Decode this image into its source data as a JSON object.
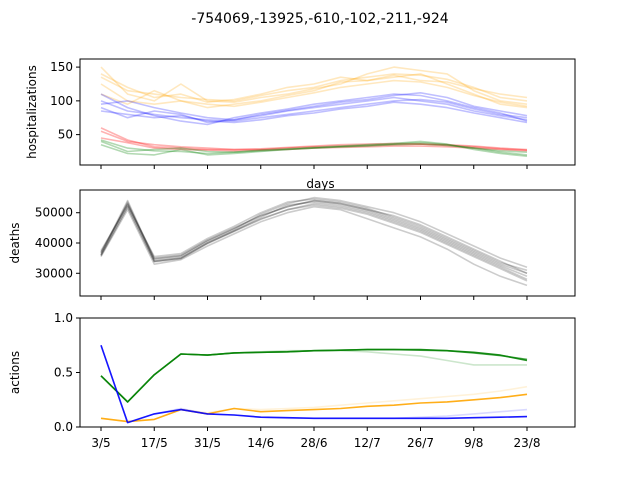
{
  "figure": {
    "suptitle": "-754069,-13925,-610,-102,-211,-924"
  },
  "x_ticklabels": [
    "3/5",
    "17/5",
    "31/5",
    "14/6",
    "28/6",
    "12/7",
    "26/7",
    "9/8",
    "23/8"
  ],
  "chart_data": [
    {
      "type": "line",
      "panel": "hospitalizations",
      "xlabel": "days",
      "ylabel": "hospitalizations",
      "ylim": [
        5,
        162
      ],
      "yticks": [
        50,
        100,
        150
      ],
      "x_unit": "weekly steps starting 3/5",
      "grid": false,
      "series": [
        {
          "color": "#ffa500",
          "alpha": 0.25,
          "values": [
            135,
            115,
            110,
            105,
            102,
            100,
            108,
            115,
            120,
            130,
            135,
            140,
            138,
            132,
            120,
            105,
            100
          ]
        },
        {
          "color": "#ffa500",
          "alpha": 0.25,
          "values": [
            150,
            110,
            100,
            125,
            100,
            98,
            105,
            110,
            118,
            125,
            140,
            150,
            145,
            140,
            115,
            100,
            95
          ]
        },
        {
          "color": "#ffa500",
          "alpha": 0.25,
          "values": [
            125,
            100,
            95,
            100,
            90,
            95,
            100,
            108,
            115,
            128,
            130,
            135,
            140,
            125,
            110,
            95,
            90
          ]
        },
        {
          "color": "#ffa500",
          "alpha": 0.25,
          "values": [
            140,
            120,
            105,
            110,
            98,
            102,
            110,
            120,
            125,
            135,
            130,
            138,
            130,
            128,
            118,
            110,
            105
          ]
        },
        {
          "color": "#ffa500",
          "alpha": 0.25,
          "values": [
            110,
            95,
            115,
            100,
            95,
            92,
            98,
            105,
            112,
            120,
            125,
            130,
            128,
            120,
            108,
            98,
            92
          ]
        },
        {
          "color": "#0000ff",
          "alpha": 0.25,
          "values": [
            100,
            85,
            80,
            75,
            72,
            70,
            75,
            80,
            85,
            90,
            95,
            100,
            102,
            98,
            88,
            80,
            75
          ]
        },
        {
          "color": "#0000ff",
          "alpha": 0.25,
          "values": [
            90,
            75,
            85,
            80,
            68,
            72,
            78,
            85,
            90,
            95,
            100,
            105,
            100,
            95,
            85,
            78,
            72
          ]
        },
        {
          "color": "#0000ff",
          "alpha": 0.25,
          "values": [
            110,
            90,
            78,
            70,
            65,
            75,
            82,
            88,
            95,
            100,
            105,
            110,
            108,
            100,
            90,
            82,
            70
          ]
        },
        {
          "color": "#0000ff",
          "alpha": 0.25,
          "values": [
            85,
            80,
            75,
            78,
            70,
            68,
            72,
            78,
            82,
            88,
            92,
            98,
            95,
            90,
            82,
            75,
            68
          ]
        },
        {
          "color": "#0000ff",
          "alpha": 0.25,
          "values": [
            95,
            100,
            90,
            82,
            75,
            72,
            80,
            86,
            92,
            98,
            102,
            108,
            112,
            105,
            92,
            85,
            78
          ]
        },
        {
          "color": "#ff0000",
          "alpha": 0.3,
          "values": [
            55,
            40,
            35,
            32,
            30,
            28,
            28,
            30,
            32,
            33,
            34,
            35,
            36,
            35,
            33,
            30,
            28
          ]
        },
        {
          "color": "#ff0000",
          "alpha": 0.3,
          "values": [
            45,
            38,
            30,
            28,
            27,
            26,
            27,
            28,
            30,
            31,
            32,
            33,
            33,
            32,
            30,
            28,
            26
          ]
        },
        {
          "color": "#ff0000",
          "alpha": 0.3,
          "values": [
            60,
            42,
            32,
            30,
            28,
            28,
            29,
            31,
            33,
            35,
            36,
            37,
            36,
            34,
            32,
            29,
            27
          ]
        },
        {
          "color": "#008000",
          "alpha": 0.3,
          "values": [
            40,
            25,
            28,
            30,
            25,
            24,
            26,
            28,
            30,
            32,
            33,
            35,
            36,
            34,
            30,
            26,
            24
          ]
        },
        {
          "color": "#008000",
          "alpha": 0.3,
          "values": [
            35,
            22,
            20,
            28,
            20,
            22,
            25,
            28,
            30,
            32,
            34,
            36,
            38,
            35,
            30,
            24,
            20
          ]
        },
        {
          "color": "#008000",
          "alpha": 0.3,
          "values": [
            42,
            30,
            26,
            25,
            22,
            24,
            27,
            29,
            31,
            33,
            35,
            37,
            40,
            36,
            28,
            22,
            18
          ]
        }
      ]
    },
    {
      "type": "line",
      "panel": "deaths",
      "ylabel": "deaths",
      "ylim": [
        22500,
        57500
      ],
      "yticks": [
        30000,
        40000,
        50000
      ],
      "grid": false,
      "series": [
        {
          "color": "#000000",
          "alpha": 0.2,
          "values": [
            36000,
            52000,
            34000,
            35000,
            40000,
            44000,
            48000,
            51000,
            53000,
            52000,
            50000,
            47000,
            44000,
            40000,
            36000,
            32000,
            28000
          ]
        },
        {
          "color": "#000000",
          "alpha": 0.2,
          "values": [
            37000,
            53000,
            35000,
            36000,
            41000,
            45000,
            49000,
            52000,
            54000,
            53000,
            51000,
            49000,
            46000,
            42000,
            38000,
            34000,
            30000
          ]
        },
        {
          "color": "#000000",
          "alpha": 0.2,
          "values": [
            35500,
            51000,
            33000,
            34500,
            39000,
            43000,
            47000,
            50000,
            52000,
            51000,
            48000,
            45000,
            42000,
            38000,
            33000,
            29000,
            26000
          ]
        },
        {
          "color": "#000000",
          "alpha": 0.2,
          "values": [
            36500,
            54000,
            34500,
            35500,
            40500,
            44500,
            49500,
            53000,
            55000,
            54000,
            52000,
            50000,
            47000,
            43000,
            39000,
            35000,
            32000
          ]
        },
        {
          "color": "#000000",
          "alpha": 0.2,
          "values": [
            37500,
            52500,
            35500,
            36500,
            41500,
            45500,
            50000,
            53500,
            54500,
            53500,
            51500,
            48500,
            45500,
            41500,
            37500,
            33500,
            31000
          ]
        },
        {
          "color": "#000000",
          "alpha": 0.2,
          "values": [
            36000,
            53500,
            34000,
            35000,
            40000,
            44000,
            48500,
            52500,
            53500,
            52500,
            50500,
            47500,
            44500,
            40500,
            36500,
            32500,
            29000
          ]
        },
        {
          "color": "#000000",
          "alpha": 0.2,
          "values": [
            36800,
            52800,
            34800,
            35800,
            40800,
            44800,
            49000,
            52000,
            54000,
            53000,
            51000,
            48000,
            45000,
            41000,
            37000,
            33000,
            30000
          ]
        },
        {
          "color": "#000000",
          "alpha": 0.2,
          "values": [
            35800,
            51800,
            33800,
            34800,
            39800,
            43800,
            47800,
            51000,
            52500,
            51500,
            49500,
            46500,
            43500,
            39500,
            35500,
            31500,
            27500
          ]
        }
      ]
    },
    {
      "type": "line",
      "panel": "actions",
      "ylabel": "actions",
      "ylim": [
        0,
        1.0
      ],
      "yticks": [
        0.0,
        0.5,
        1.0
      ],
      "grid": false,
      "series": [
        {
          "color": "#008000",
          "alpha": 0.2,
          "values": [
            0.47,
            0.23,
            0.48,
            0.67,
            0.66,
            0.68,
            0.69,
            0.7,
            0.7,
            0.7,
            0.69,
            0.67,
            0.65,
            0.61,
            0.57,
            0.57,
            0.57
          ]
        },
        {
          "color": "#008000",
          "alpha": 0.7,
          "values": [
            0.47,
            0.23,
            0.48,
            0.67,
            0.66,
            0.68,
            0.685,
            0.69,
            0.7,
            0.705,
            0.71,
            0.71,
            0.705,
            0.7,
            0.68,
            0.655,
            0.62
          ]
        },
        {
          "color": "#008000",
          "alpha": 0.85,
          "values": [
            0.47,
            0.23,
            0.48,
            0.67,
            0.66,
            0.68,
            0.685,
            0.69,
            0.7,
            0.705,
            0.71,
            0.71,
            0.71,
            0.7,
            0.685,
            0.66,
            0.61
          ]
        },
        {
          "color": "#ffa500",
          "alpha": 0.15,
          "values": [
            0.08,
            0.05,
            0.07,
            0.16,
            0.13,
            0.17,
            0.16,
            0.17,
            0.18,
            0.2,
            0.22,
            0.24,
            0.26,
            0.28,
            0.3,
            0.33,
            0.37
          ]
        },
        {
          "color": "#ffa500",
          "alpha": 0.9,
          "values": [
            0.08,
            0.05,
            0.07,
            0.16,
            0.12,
            0.17,
            0.14,
            0.15,
            0.16,
            0.17,
            0.19,
            0.2,
            0.22,
            0.23,
            0.25,
            0.27,
            0.3
          ]
        },
        {
          "color": "#0000ff",
          "alpha": 0.15,
          "values": [
            0.75,
            0.04,
            0.12,
            0.17,
            0.12,
            0.11,
            0.09,
            0.08,
            0.08,
            0.08,
            0.08,
            0.08,
            0.09,
            0.1,
            0.12,
            0.14,
            0.16
          ]
        },
        {
          "color": "#0000ff",
          "alpha": 0.9,
          "values": [
            0.75,
            0.04,
            0.12,
            0.16,
            0.12,
            0.11,
            0.09,
            0.085,
            0.08,
            0.08,
            0.08,
            0.08,
            0.08,
            0.08,
            0.085,
            0.09,
            0.095
          ]
        }
      ]
    }
  ]
}
